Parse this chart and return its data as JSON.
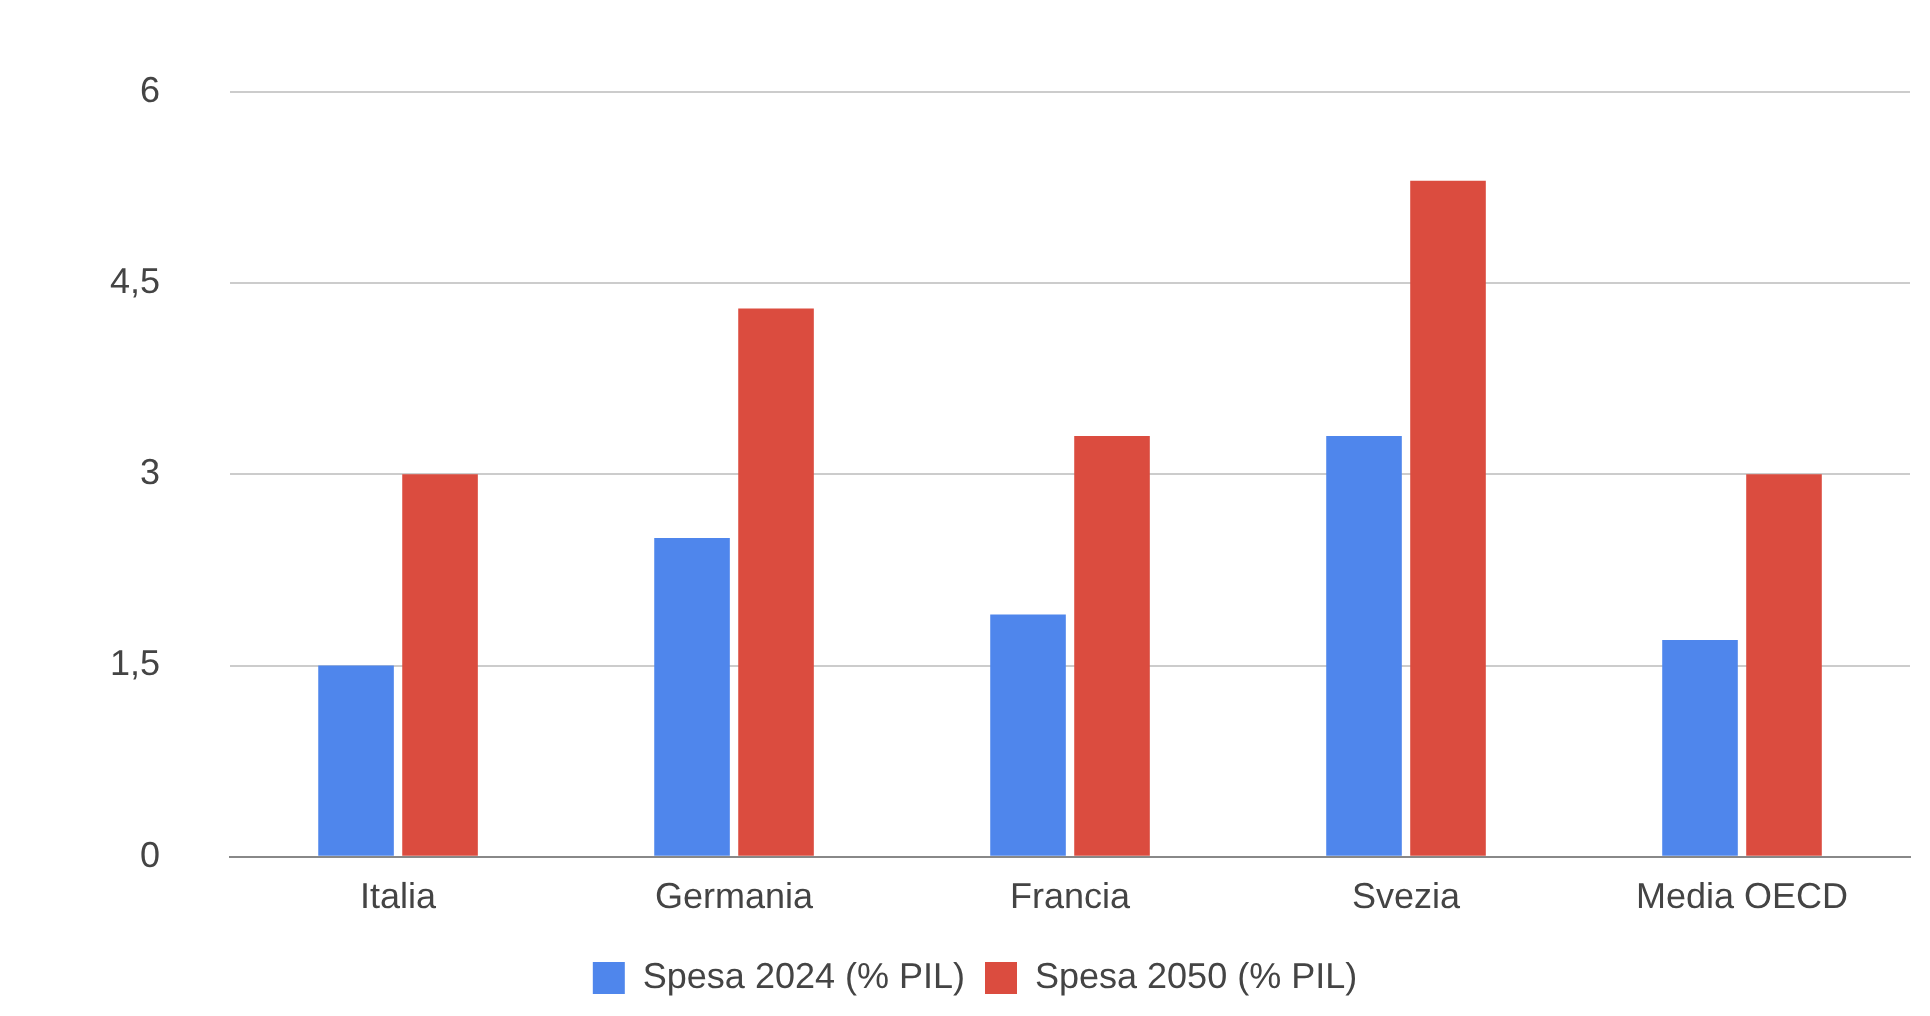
{
  "chart_data": {
    "type": "bar",
    "categories": [
      "Italia",
      "Germania",
      "Francia",
      "Svezia",
      "Media OECD"
    ],
    "series": [
      {
        "name": "Spesa 2024 (% PIL)",
        "color": "#4f86ec",
        "values": [
          1.5,
          2.5,
          1.9,
          3.3,
          1.7
        ]
      },
      {
        "name": "Spesa 2050 (% PIL)",
        "color": "#db4c3f",
        "values": [
          3.0,
          4.3,
          3.3,
          5.3,
          3.0
        ]
      }
    ],
    "ylim": [
      0,
      6
    ],
    "yticks": [
      0,
      {
        "value": 1.5,
        "label": "1,5"
      },
      3,
      {
        "value": 4.5,
        "label": "4,5"
      },
      6
    ],
    "grid": "y",
    "legend": "bottom"
  }
}
